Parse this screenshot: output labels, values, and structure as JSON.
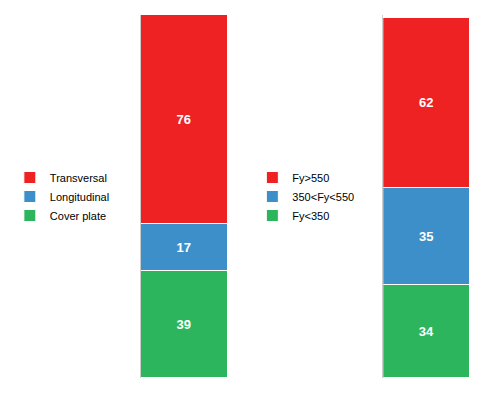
{
  "chart_data": [
    {
      "type": "bar",
      "stacked": true,
      "categories": [
        null
      ],
      "series": [
        {
          "name": "Cover plate",
          "color": "#2DB55D",
          "values": [
            39
          ]
        },
        {
          "name": "Longitudinal",
          "color": "#3D8FC9",
          "values": [
            17
          ]
        },
        {
          "name": "Transversal",
          "color": "#EE2222",
          "values": [
            76
          ]
        }
      ],
      "ylim": [
        0,
        132
      ],
      "data_labels": true,
      "tick_labels": false,
      "grid": false,
      "legend": "left"
    },
    {
      "type": "bar",
      "stacked": true,
      "categories": [
        null
      ],
      "series": [
        {
          "name": "Fy<350",
          "color": "#2DB55D",
          "values": [
            34
          ]
        },
        {
          "name": "350<Fy<550",
          "color": "#3D8FC9",
          "values": [
            35
          ]
        },
        {
          "name": "Fy>550",
          "color": "#EE2222",
          "values": [
            62
          ]
        }
      ],
      "ylim": [
        0,
        132
      ],
      "data_labels": true,
      "tick_labels": false,
      "grid": false,
      "legend": "left"
    }
  ]
}
